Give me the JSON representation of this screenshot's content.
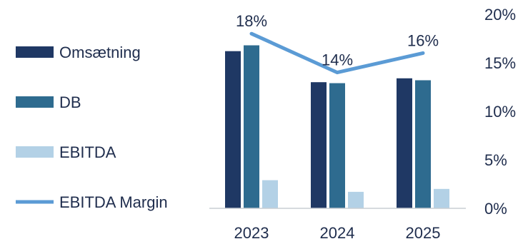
{
  "chart_data": {
    "type": "bar",
    "categories": [
      "2023",
      "2024",
      "2025"
    ],
    "series": [
      {
        "name": "Omsætning",
        "kind": "bar",
        "color": "#1f3864",
        "values": [
          81,
          65,
          67
        ]
      },
      {
        "name": "DB",
        "kind": "bar",
        "color": "#2e6b8f",
        "values": [
          84,
          64.5,
          66
        ]
      },
      {
        "name": "EBITDA",
        "kind": "bar",
        "color": "#b3d1e6",
        "values": [
          14.5,
          8.5,
          10
        ]
      },
      {
        "name": "EBITDA Margin",
        "kind": "line",
        "axis": "right",
        "color": "#5b9bd5",
        "values": [
          18,
          14,
          16
        ],
        "labels": [
          "18%",
          "14%",
          "16%"
        ]
      }
    ],
    "y_left_lim": [
      0,
      100
    ],
    "y_right": {
      "lim": [
        0,
        20
      ],
      "ticks": [
        0,
        5,
        10,
        15,
        20
      ],
      "tick_labels": [
        "0%",
        "5%",
        "10%",
        "15%",
        "20%"
      ]
    },
    "legend_position": "left",
    "grid": false
  }
}
